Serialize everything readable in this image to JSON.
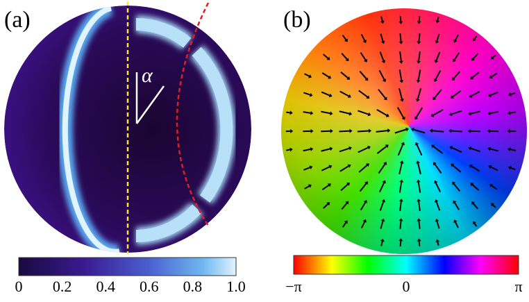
{
  "panels": [
    {
      "label": "(a)",
      "angle_label": "α",
      "colorbar_ticks": [
        "0",
        "0.2",
        "0.4",
        "0.6",
        "0.8",
        "1.0"
      ]
    },
    {
      "label": "(b)",
      "colorbar_ticks": [
        "−π",
        "0",
        "π"
      ]
    }
  ]
}
